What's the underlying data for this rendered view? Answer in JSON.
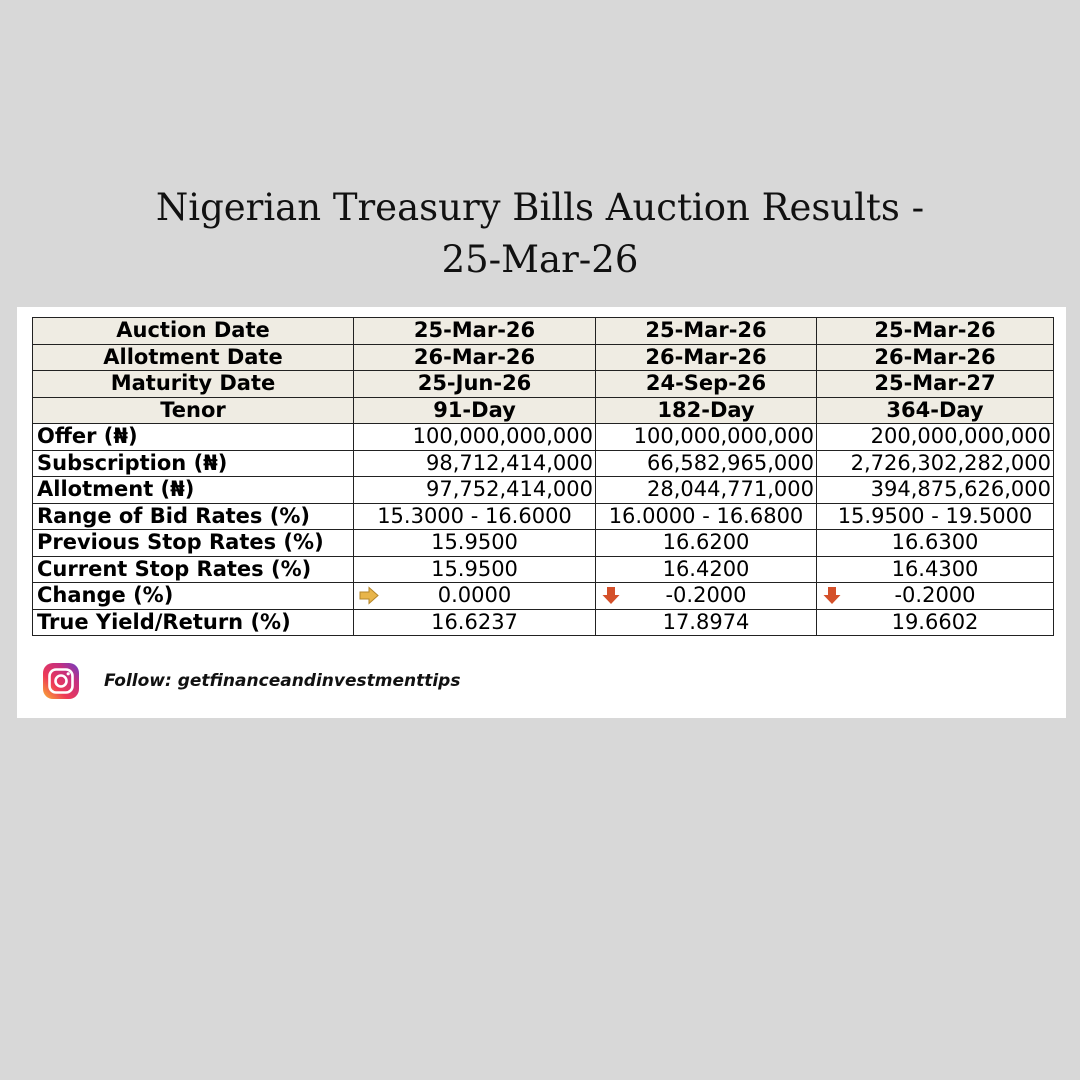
{
  "title": {
    "line1": "Nigerian Treasury Bills Auction Results -",
    "line2": "25-Mar-26"
  },
  "table": {
    "header_rows": [
      {
        "label": "Auction Date",
        "values": [
          "25-Mar-26",
          "25-Mar-26",
          "25-Mar-26"
        ]
      },
      {
        "label": "Allotment Date",
        "values": [
          "26-Mar-26",
          "26-Mar-26",
          "26-Mar-26"
        ]
      },
      {
        "label": "Maturity Date",
        "values": [
          "25-Jun-26",
          "24-Sep-26",
          "25-Mar-27"
        ]
      },
      {
        "label": "Tenor",
        "values": [
          "91-Day",
          "182-Day",
          "364-Day"
        ]
      }
    ],
    "body_rows": [
      {
        "label": "Offer (₦)",
        "values": [
          "100,000,000,000",
          "100,000,000,000",
          "200,000,000,000"
        ]
      },
      {
        "label": "Subscription (₦)",
        "values": [
          "98,712,414,000",
          "66,582,965,000",
          "2,726,302,282,000"
        ]
      },
      {
        "label": "Allotment (₦)",
        "values": [
          "97,752,414,000",
          "28,044,771,000",
          "394,875,626,000"
        ]
      },
      {
        "label": "Range of Bid Rates (%)",
        "values": [
          "15.3000 - 16.6000",
          "16.0000 - 16.6800",
          "15.9500 - 19.5000"
        ]
      },
      {
        "label": "Previous Stop Rates (%)",
        "values": [
          "15.9500",
          "16.6200",
          "16.6300"
        ]
      },
      {
        "label": "Current Stop Rates (%)",
        "values": [
          "15.9500",
          "16.4200",
          "16.4300"
        ]
      },
      {
        "label": "Change (%)",
        "values": [
          "0.0000",
          "-0.2000",
          "-0.2000"
        ],
        "indicators": [
          "arrow-right-icon",
          "arrow-down-icon",
          "arrow-down-icon"
        ]
      },
      {
        "label": "True Yield/Return (%)",
        "values": [
          "16.6237",
          "17.8974",
          "19.6602"
        ]
      }
    ],
    "colors": {
      "header_bg": "#efece3",
      "flat_arrow": "#e8b54a",
      "down_arrow": "#d4502a"
    }
  },
  "footer": {
    "icon": "instagram-icon",
    "text": "Follow: getfinanceandinvestmenttips"
  }
}
